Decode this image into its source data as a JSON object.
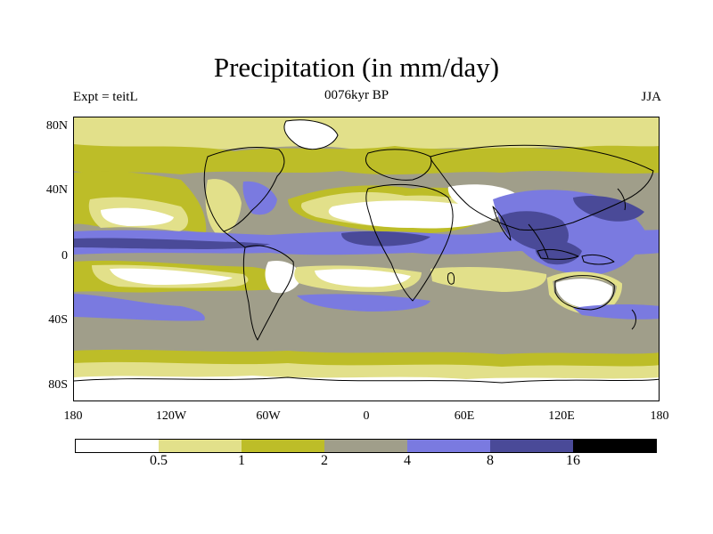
{
  "title": "Precipitation (in mm/day)",
  "subtitle": "0076kyr BP",
  "experiment_label": "Expt = teitL",
  "season_label": "JJA",
  "y_axis_labels": [
    "80N",
    "40N",
    "0",
    "40S",
    "80S"
  ],
  "x_axis_labels": [
    "180",
    "120W",
    "60W",
    "0",
    "60E",
    "120E",
    "180"
  ],
  "colorbar": {
    "labels": [
      "0.5",
      "1",
      "2",
      "4",
      "8",
      "16"
    ],
    "colors": [
      "#ffffff",
      "#e2e08a",
      "#bdbd28",
      "#a09e8a",
      "#7a7ae0",
      "#4a4a98",
      "#000000"
    ]
  },
  "palette": {
    "very_low": "#ffffff",
    "low": "#e2e08a",
    "moderate": "#bdbd28",
    "medium": "#a09e8a",
    "high": "#7a7ae0",
    "very_high": "#4a4a98",
    "extreme": "#000000"
  }
}
